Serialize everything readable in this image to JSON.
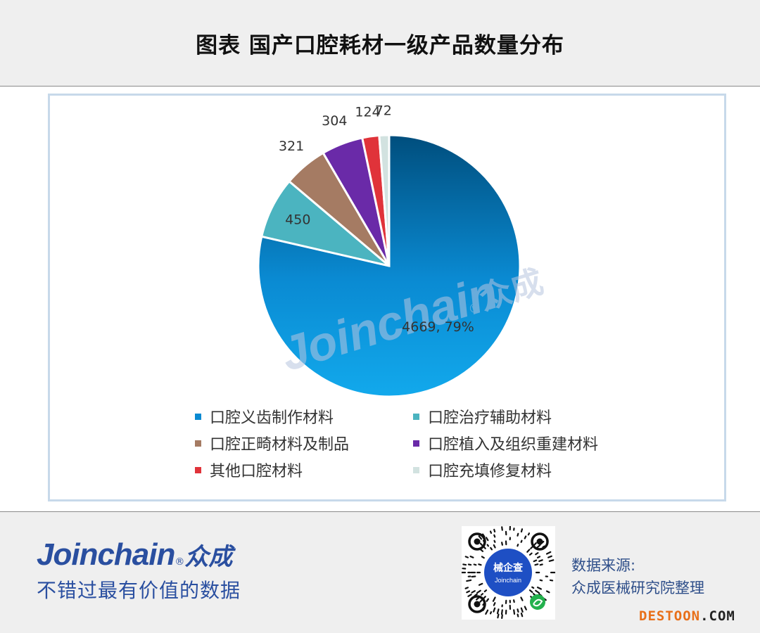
{
  "title": "图表 国产口腔耗材一级产品数量分布",
  "watermark": {
    "latin": "Joinchain",
    "mark": "®",
    "cn": "众成"
  },
  "chart_data": {
    "type": "pie",
    "title": "",
    "slices": [
      {
        "label": "口腔义齿制作材料",
        "value": 4669,
        "data_label": "4669, 79%",
        "color": "#0a8ad2"
      },
      {
        "label": "口腔治疗辅助材料",
        "value": 450,
        "data_label": "450",
        "color": "#4bb4c0"
      },
      {
        "label": "口腔正畸材料及制品",
        "value": 321,
        "data_label": "321",
        "color": "#a57b63"
      },
      {
        "label": "口腔植入及组织重建材料",
        "value": 304,
        "data_label": "304",
        "color": "#6a2aa8"
      },
      {
        "label": "其他口腔材料",
        "value": 124,
        "data_label": "124",
        "color": "#e0333a"
      },
      {
        "label": "口腔充填修复材料",
        "value": 72,
        "data_label": "72",
        "color": "#d2e2e0"
      }
    ],
    "legend_placement": "bottom"
  },
  "footer": {
    "brand_latin": "Joinchain",
    "brand_mark": "®",
    "brand_cn": "众成",
    "slogan": "不错过最有价值的数据",
    "qr_text_cn": "械企查",
    "qr_text_latin": "Joinchain",
    "source_line1": "数据来源:",
    "source_line2": "众成医械研究院整理",
    "destoon_a": "DESTOON",
    "destoon_b": ".COM"
  }
}
